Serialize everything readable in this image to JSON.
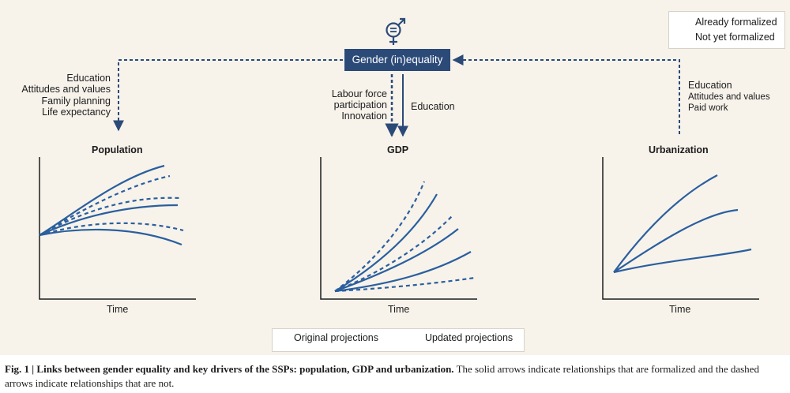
{
  "center": {
    "label": "Gender (in)equality"
  },
  "legend": {
    "formalized": "Already formalized",
    "not_formalized": "Not yet formalized"
  },
  "left_drivers": {
    "line1": "Education",
    "line2": "Attitudes and values",
    "line3": "Family planning",
    "line4": "Life expectancy"
  },
  "mid_drivers_dashed": {
    "line1": "Labour force",
    "line2": "participation",
    "line3": "Innovation"
  },
  "mid_drivers_solid": {
    "line1": "Education"
  },
  "right_drivers": {
    "line1": "Education",
    "line2": "Attitudes and values",
    "line3": "Paid work"
  },
  "panels": {
    "population": {
      "title": "Population",
      "xlabel": "Time"
    },
    "gdp": {
      "title": "GDP",
      "xlabel": "Time"
    },
    "urbanization": {
      "title": "Urbanization",
      "xlabel": "Time"
    }
  },
  "projections_legend": {
    "original": "Original projections",
    "updated": "Updated projections"
  },
  "caption": {
    "bold": "Fig. 1 | Links between gender equality and key drivers of the SSPs: population, GDP and urbanization.",
    "rest": " The solid arrows indicate relationships that are formalized and the dashed arrows indicate relationships that are not."
  },
  "colors": {
    "accent": "#2b5f9e",
    "navy": "#2b4a78",
    "background": "#f7f3eb"
  }
}
